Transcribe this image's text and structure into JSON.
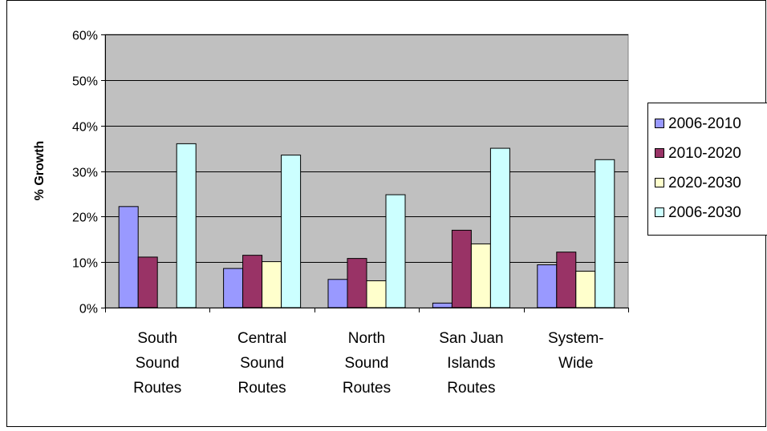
{
  "chart_data": {
    "type": "bar",
    "title": "",
    "xlabel": "",
    "ylabel": "% Growth",
    "ylim": [
      0,
      60
    ],
    "y_ticks": [
      "0%",
      "10%",
      "20%",
      "30%",
      "40%",
      "50%",
      "60%"
    ],
    "y_tick_values": [
      0,
      10,
      20,
      30,
      40,
      50,
      60
    ],
    "grid": true,
    "legend_position": "right",
    "plot_background": "#c0c0c0",
    "categories": [
      [
        "South",
        "Sound",
        "Routes"
      ],
      [
        "Central",
        "Sound",
        "Routes"
      ],
      [
        "North",
        "Sound",
        "Routes"
      ],
      [
        "San Juan",
        "Islands",
        "Routes"
      ],
      [
        "System-",
        "Wide"
      ]
    ],
    "series": [
      {
        "name": "2006-2010",
        "color": "#9999ff",
        "values": [
          22.2,
          8.6,
          6.2,
          1.0,
          9.4
        ]
      },
      {
        "name": "2010-2020",
        "color": "#993366",
        "values": [
          11.1,
          11.5,
          10.8,
          17.0,
          12.2
        ]
      },
      {
        "name": "2020-2030",
        "color": "#ffffcc",
        "values": [
          0.0,
          10.1,
          5.9,
          14.0,
          8.0
        ]
      },
      {
        "name": "2006-2030",
        "color": "#ccffff",
        "values": [
          36.0,
          33.5,
          24.8,
          35.0,
          32.5
        ]
      }
    ]
  }
}
